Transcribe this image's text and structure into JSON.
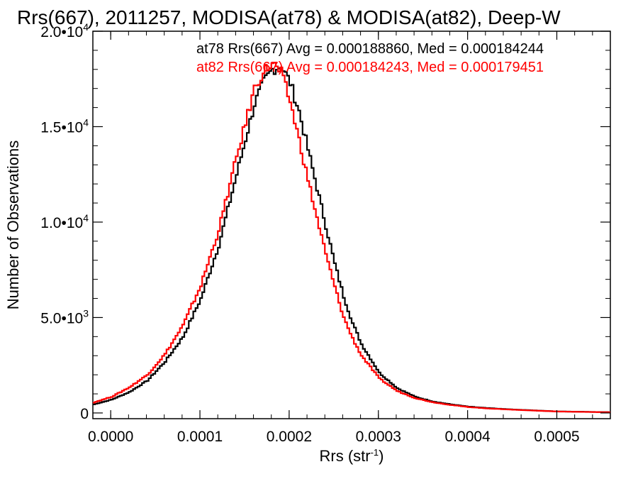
{
  "chart_data": {
    "type": "line",
    "title": "Rrs(667), 2011257, MODISA(at78) & MODISA(at82), Deep-W",
    "xlabel": "Rrs (str",
    "xlabel_sup": "-1",
    "xlabel_close": ")",
    "ylabel": "Number of Observations",
    "xlim": [
      -2e-05,
      0.00056
    ],
    "ylim": [
      -300,
      20000
    ],
    "x_ticks": [
      {
        "value": 0.0,
        "label": "0.0000"
      },
      {
        "value": 0.0001,
        "label": "0.0001"
      },
      {
        "value": 0.0002,
        "label": "0.0002"
      },
      {
        "value": 0.0003,
        "label": "0.0003"
      },
      {
        "value": 0.0004,
        "label": "0.0004"
      },
      {
        "value": 0.0005,
        "label": "0.0005"
      }
    ],
    "y_ticks": [
      {
        "value": 0,
        "mantissa": "0",
        "exp": ""
      },
      {
        "value": 5000,
        "mantissa": "5.0•10",
        "exp": "3"
      },
      {
        "value": 10000,
        "mantissa": "1.0•10",
        "exp": "4"
      },
      {
        "value": 15000,
        "mantissa": "1.5•10",
        "exp": "4"
      },
      {
        "value": 20000,
        "mantissa": "2.0•10",
        "exp": "4"
      }
    ],
    "series": [
      {
        "name": "at78",
        "color": "#000000",
        "legend": "at78 Rrs(667) Avg = 0.000188860, Med = 0.000184244",
        "x": [
          -2e-05,
          0.0,
          2e-05,
          4e-05,
          6e-05,
          8e-05,
          0.0001,
          0.00012,
          0.00014,
          0.00016,
          0.00017,
          0.00018,
          0.00019,
          0.0002,
          0.00021,
          0.00022,
          0.00023,
          0.00024,
          0.00025,
          0.00026,
          0.00027,
          0.00028,
          0.0003,
          0.00032,
          0.00034,
          0.00036,
          0.00038,
          0.0004,
          0.00042,
          0.00045,
          0.0005,
          0.00056
        ],
        "y": [
          450,
          700,
          1100,
          1700,
          2700,
          4000,
          6000,
          8800,
          12500,
          16200,
          17300,
          18000,
          18200,
          17300,
          15800,
          13800,
          11800,
          9800,
          7800,
          6100,
          4700,
          3600,
          2100,
          1300,
          850,
          600,
          450,
          330,
          260,
          180,
          80,
          40
        ]
      },
      {
        "name": "at82",
        "color": "#ff0000",
        "legend": "at82 Rrs(667) Avg = 0.000184243, Med = 0.000179451",
        "x": [
          -2e-05,
          0.0,
          2e-05,
          4e-05,
          6e-05,
          8e-05,
          0.0001,
          0.00012,
          0.00014,
          0.00016,
          0.00017,
          0.00018,
          0.00019,
          0.0002,
          0.00021,
          0.00022,
          0.00023,
          0.00024,
          0.00025,
          0.00026,
          0.00027,
          0.00028,
          0.0003,
          0.00032,
          0.00034,
          0.00036,
          0.00038,
          0.0004,
          0.00042,
          0.00045,
          0.0005,
          0.00056
        ],
        "y": [
          550,
          850,
          1350,
          2000,
          3100,
          4600,
          6700,
          9600,
          13400,
          17000,
          17900,
          18300,
          17800,
          16300,
          14300,
          12200,
          10200,
          8300,
          6600,
          5000,
          3900,
          3000,
          1800,
          1150,
          780,
          560,
          420,
          310,
          240,
          170,
          75,
          35
        ]
      }
    ]
  }
}
